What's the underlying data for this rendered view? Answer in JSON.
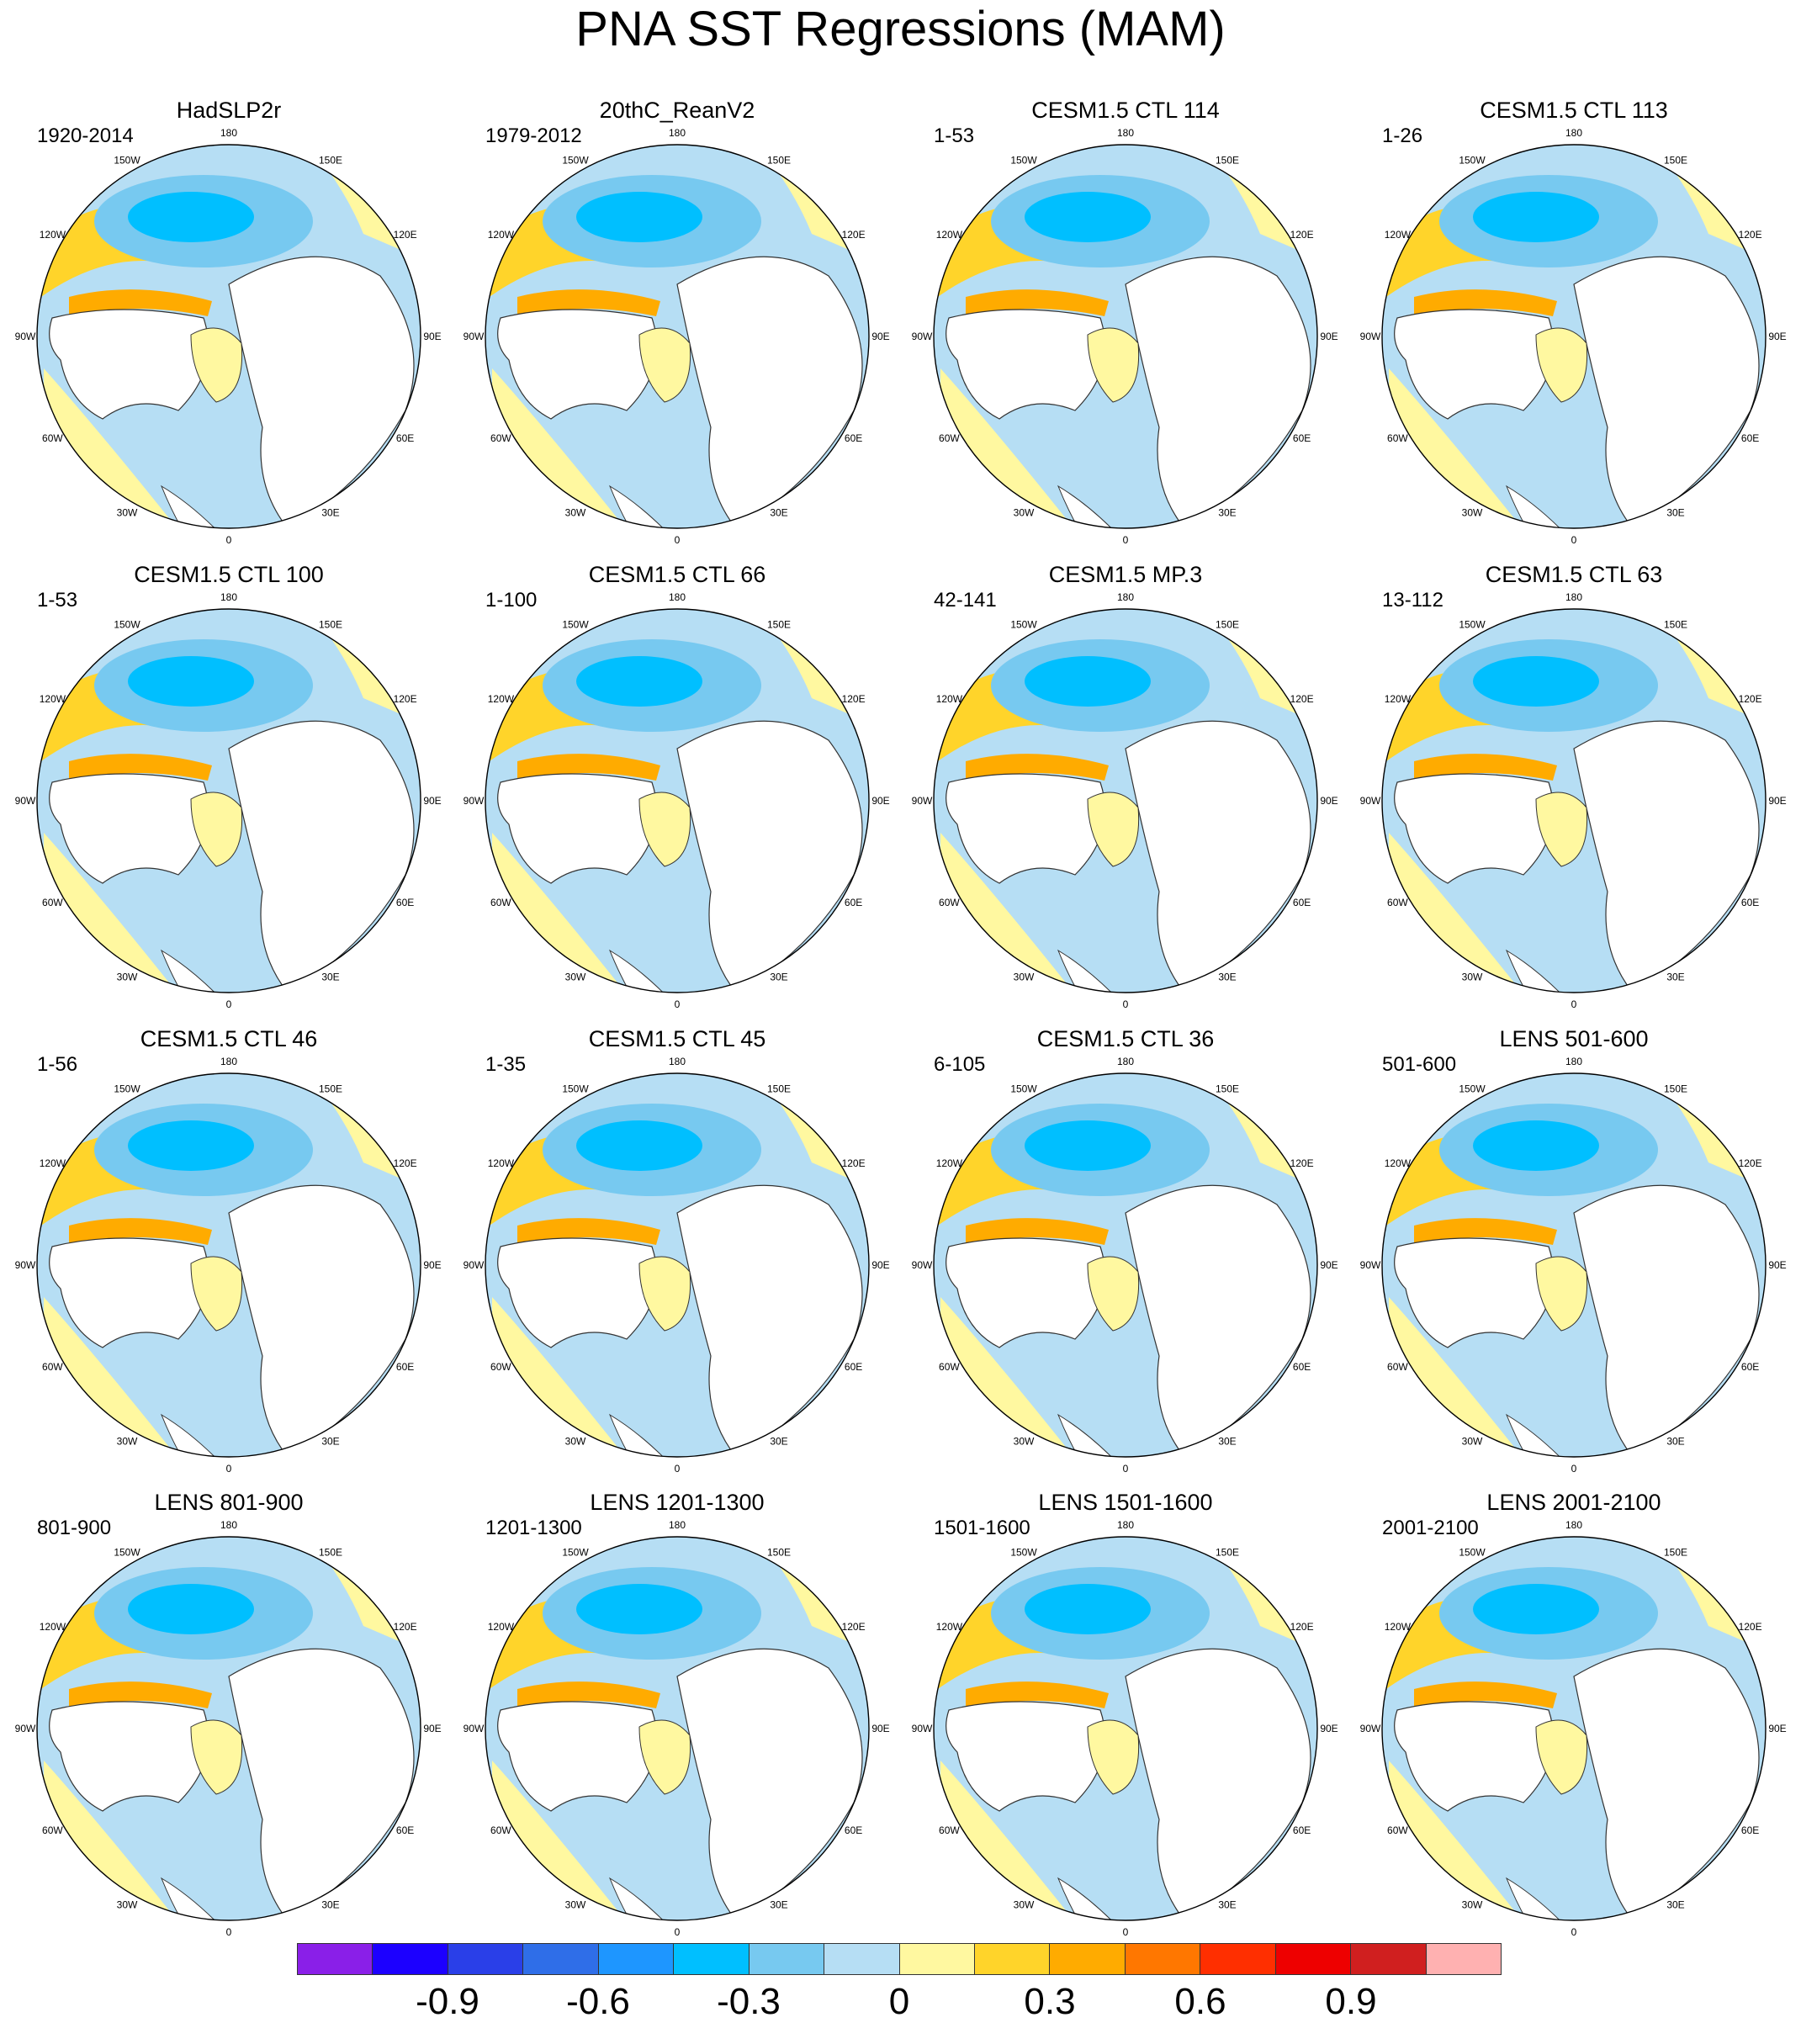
{
  "title": "PNA SST Regressions (MAM)",
  "longitude_labels": [
    "180",
    "150E",
    "120E",
    "90E",
    "60E",
    "30E",
    "0",
    "30W",
    "60W",
    "90W",
    "120W",
    "150W"
  ],
  "panels": [
    {
      "title": "HadSLP2r",
      "period": "1920-2014"
    },
    {
      "title": "20thC_ReanV2",
      "period": "1979-2012"
    },
    {
      "title": "CESM1.5 CTL 114",
      "period": "1-53"
    },
    {
      "title": "CESM1.5 CTL 113",
      "period": "1-26"
    },
    {
      "title": "CESM1.5 CTL 100",
      "period": "1-53"
    },
    {
      "title": "CESM1.5 CTL 66",
      "period": "1-100"
    },
    {
      "title": "CESM1.5 MP.3",
      "period": "42-141"
    },
    {
      "title": "CESM1.5 CTL 63",
      "period": "13-112"
    },
    {
      "title": "CESM1.5 CTL 46",
      "period": "1-56"
    },
    {
      "title": "CESM1.5 CTL 45",
      "period": "1-35"
    },
    {
      "title": "CESM1.5 CTL 36",
      "period": "6-105"
    },
    {
      "title": "LENS 501-600",
      "period": "501-600"
    },
    {
      "title": "LENS 801-900",
      "period": "801-900"
    },
    {
      "title": "LENS 1201-1300",
      "period": "1201-1300"
    },
    {
      "title": "LENS 1501-1600",
      "period": "1501-1600"
    },
    {
      "title": "LENS 2001-2100",
      "period": "2001-2100"
    }
  ],
  "colorbar": {
    "colors": [
      "#8a1fe8",
      "#1c00ff",
      "#2a3fe8",
      "#2f6ee8",
      "#1e96ff",
      "#00bfff",
      "#77c9f0",
      "#b6def4",
      "#fff8a0",
      "#ffd42a",
      "#ffab00",
      "#ff7700",
      "#ff2f00",
      "#ee0000",
      "#d01f1f",
      "#ffb1b1"
    ],
    "tick_labels": [
      "-0.9",
      "-0.6",
      "-0.3",
      "0",
      "0.3",
      "0.6",
      "0.9"
    ]
  },
  "colors": {
    "ocean_neutral_warm": "#fff8a0",
    "ocean_neutral_cool": "#b6def4",
    "cool_mid": "#77c9f0",
    "cool_strong": "#00bfff",
    "warm_mid": "#ffd42a",
    "warm_strong": "#ffab00",
    "land": "#ffffff",
    "coast": "#333333"
  }
}
